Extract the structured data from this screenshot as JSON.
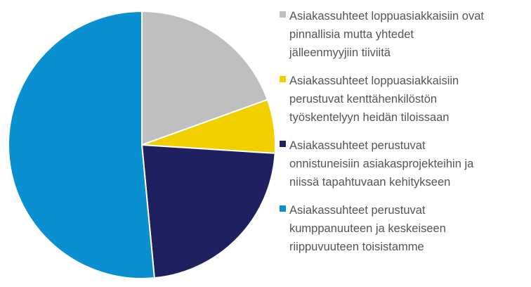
{
  "chart_data": {
    "type": "pie",
    "start_angle_deg": 0,
    "direction": "clockwise",
    "slices": [
      {
        "label": "Asiakassuhteet loppuasiakkaisiin ovat\npinnallisia mutta yhtedet\njälleenmyyjiin tiiviitä",
        "value": 19.5,
        "color": "#bfbfbf"
      },
      {
        "label": "Asiakassuhteet loppuasiakkaisiin\nperustuvat kenttähenkilöstön\ntyöskentelyyn heidän tiloissaan",
        "value": 6.5,
        "color": "#f2d000"
      },
      {
        "label": "Asiakassuhteet perustuvat\nonnistuneisiin asiakasprojekteihin ja\nniissä tapahtuvaan kehitykseen",
        "value": 22.5,
        "color": "#1f2060"
      },
      {
        "label": "Asiakassuhteet perustuvat\nkumppanuuteen ja keskeiseen\nriippuvuuteen toisistamme",
        "value": 51.5,
        "color": "#0a8fd0"
      }
    ],
    "legend_position": "right"
  }
}
